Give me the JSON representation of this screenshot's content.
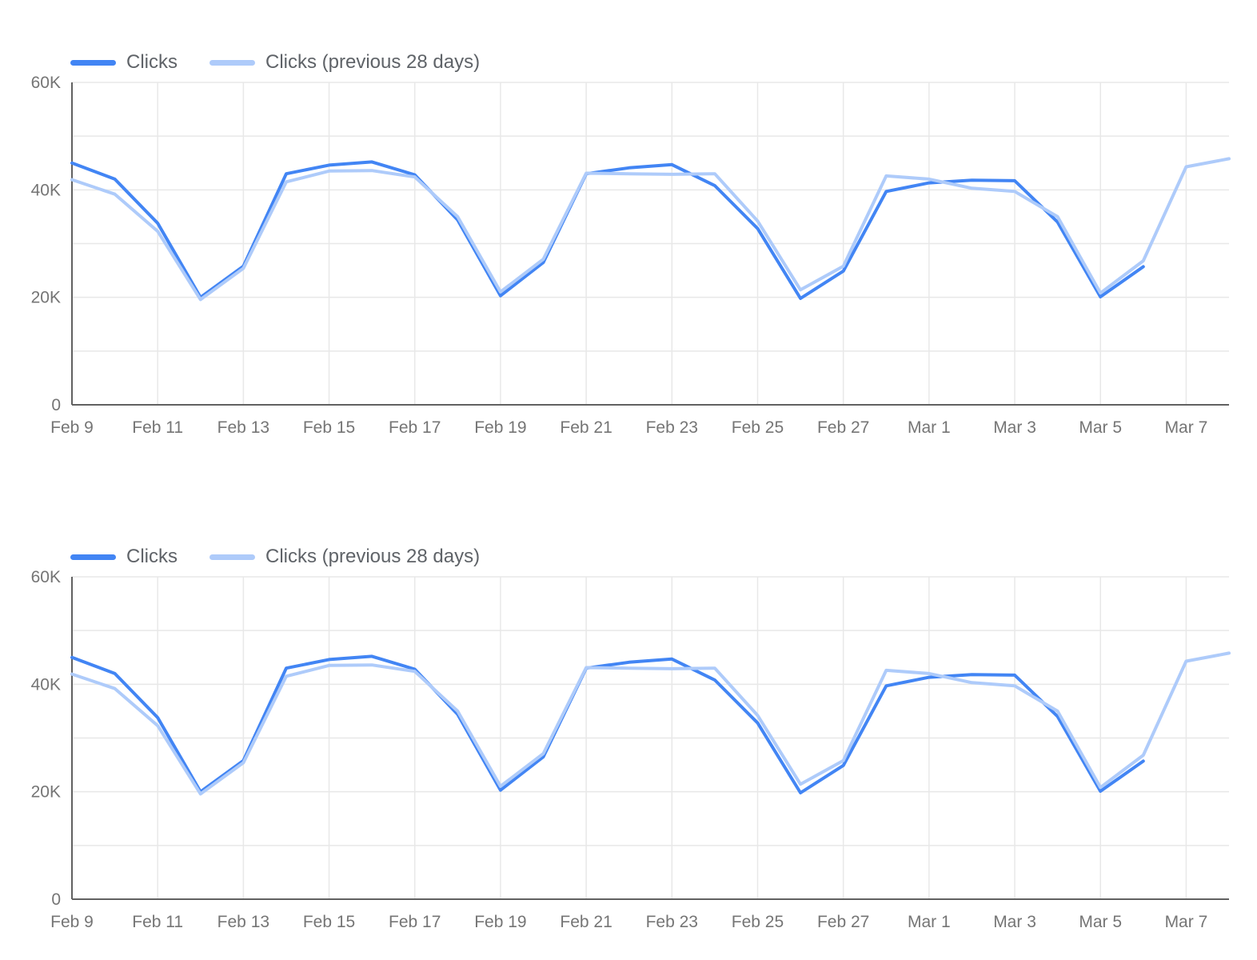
{
  "page": {
    "background": "#ffffff"
  },
  "chart_style": {
    "grid_color": "#e8e8e8",
    "axis_color": "#616161",
    "tick_text_color": "#757575",
    "legend_text_color": "#5f6368"
  },
  "chart_data": [
    {
      "type": "line",
      "title": "",
      "xlabel": "",
      "ylabel": "",
      "grid": true,
      "legend_position": "top-left",
      "ylim": [
        0,
        60000
      ],
      "y_grid_interval": 10000,
      "y_ticks": [
        {
          "value": 0,
          "label": "0"
        },
        {
          "value": 20000,
          "label": "20K"
        },
        {
          "value": 40000,
          "label": "40K"
        },
        {
          "value": 60000,
          "label": "60K"
        }
      ],
      "x": [
        "Feb 9",
        "Feb 10",
        "Feb 11",
        "Feb 12",
        "Feb 13",
        "Feb 14",
        "Feb 15",
        "Feb 16",
        "Feb 17",
        "Feb 18",
        "Feb 19",
        "Feb 20",
        "Feb 21",
        "Feb 22",
        "Feb 23",
        "Feb 24",
        "Feb 25",
        "Feb 26",
        "Feb 27",
        "Feb 28",
        "Mar 1",
        "Mar 2",
        "Mar 3",
        "Mar 4",
        "Mar 5",
        "Mar 6",
        "Mar 7",
        "Mar 8"
      ],
      "x_tick_labels": [
        "Feb 9",
        "Feb 11",
        "Feb 13",
        "Feb 15",
        "Feb 17",
        "Feb 19",
        "Feb 21",
        "Feb 23",
        "Feb 25",
        "Feb 27",
        "Mar 1",
        "Mar 3",
        "Mar 5",
        "Mar 7"
      ],
      "series": [
        {
          "name": "Clicks",
          "color": "#4285f4",
          "values": [
            45000,
            42000,
            33800,
            20000,
            25800,
            43000,
            44600,
            45200,
            42800,
            34400,
            20300,
            26500,
            43000,
            44100,
            44700,
            40800,
            32800,
            19800,
            24900,
            39700,
            41300,
            41800,
            41700,
            34000,
            20100,
            25700,
            null,
            null
          ]
        },
        {
          "name": "Clicks (previous 28 days)",
          "color": "#aecbfa",
          "values": [
            41900,
            39200,
            32300,
            19600,
            25400,
            41500,
            43500,
            43600,
            42400,
            35000,
            21000,
            27100,
            43100,
            43000,
            42900,
            43000,
            34200,
            21400,
            25800,
            42600,
            42000,
            40300,
            39700,
            35000,
            20800,
            26800,
            44300,
            45800
          ]
        }
      ]
    },
    {
      "type": "line",
      "title": "",
      "xlabel": "",
      "ylabel": "",
      "grid": true,
      "legend_position": "top-left",
      "ylim": [
        0,
        60000
      ],
      "y_grid_interval": 10000,
      "y_ticks": [
        {
          "value": 0,
          "label": "0"
        },
        {
          "value": 20000,
          "label": "20K"
        },
        {
          "value": 40000,
          "label": "40K"
        },
        {
          "value": 60000,
          "label": "60K"
        }
      ],
      "x": [
        "Feb 9",
        "Feb 10",
        "Feb 11",
        "Feb 12",
        "Feb 13",
        "Feb 14",
        "Feb 15",
        "Feb 16",
        "Feb 17",
        "Feb 18",
        "Feb 19",
        "Feb 20",
        "Feb 21",
        "Feb 22",
        "Feb 23",
        "Feb 24",
        "Feb 25",
        "Feb 26",
        "Feb 27",
        "Feb 28",
        "Mar 1",
        "Mar 2",
        "Mar 3",
        "Mar 4",
        "Mar 5",
        "Mar 6",
        "Mar 7",
        "Mar 8"
      ],
      "x_tick_labels": [
        "Feb 9",
        "Feb 11",
        "Feb 13",
        "Feb 15",
        "Feb 17",
        "Feb 19",
        "Feb 21",
        "Feb 23",
        "Feb 25",
        "Feb 27",
        "Mar 1",
        "Mar 3",
        "Mar 5",
        "Mar 7"
      ],
      "series": [
        {
          "name": "Clicks",
          "color": "#4285f4",
          "values": [
            45000,
            42000,
            33800,
            20000,
            25800,
            43000,
            44600,
            45200,
            42800,
            34400,
            20300,
            26500,
            43000,
            44100,
            44700,
            40800,
            32800,
            19800,
            24900,
            39700,
            41300,
            41800,
            41700,
            34000,
            20100,
            25700,
            null,
            null
          ]
        },
        {
          "name": "Clicks (previous 28 days)",
          "color": "#aecbfa",
          "values": [
            41900,
            39200,
            32300,
            19600,
            25400,
            41500,
            43500,
            43600,
            42400,
            35000,
            21000,
            27100,
            43100,
            43000,
            42900,
            43000,
            34200,
            21400,
            25800,
            42600,
            42000,
            40300,
            39700,
            35000,
            20800,
            26800,
            44300,
            45800
          ]
        }
      ]
    }
  ]
}
